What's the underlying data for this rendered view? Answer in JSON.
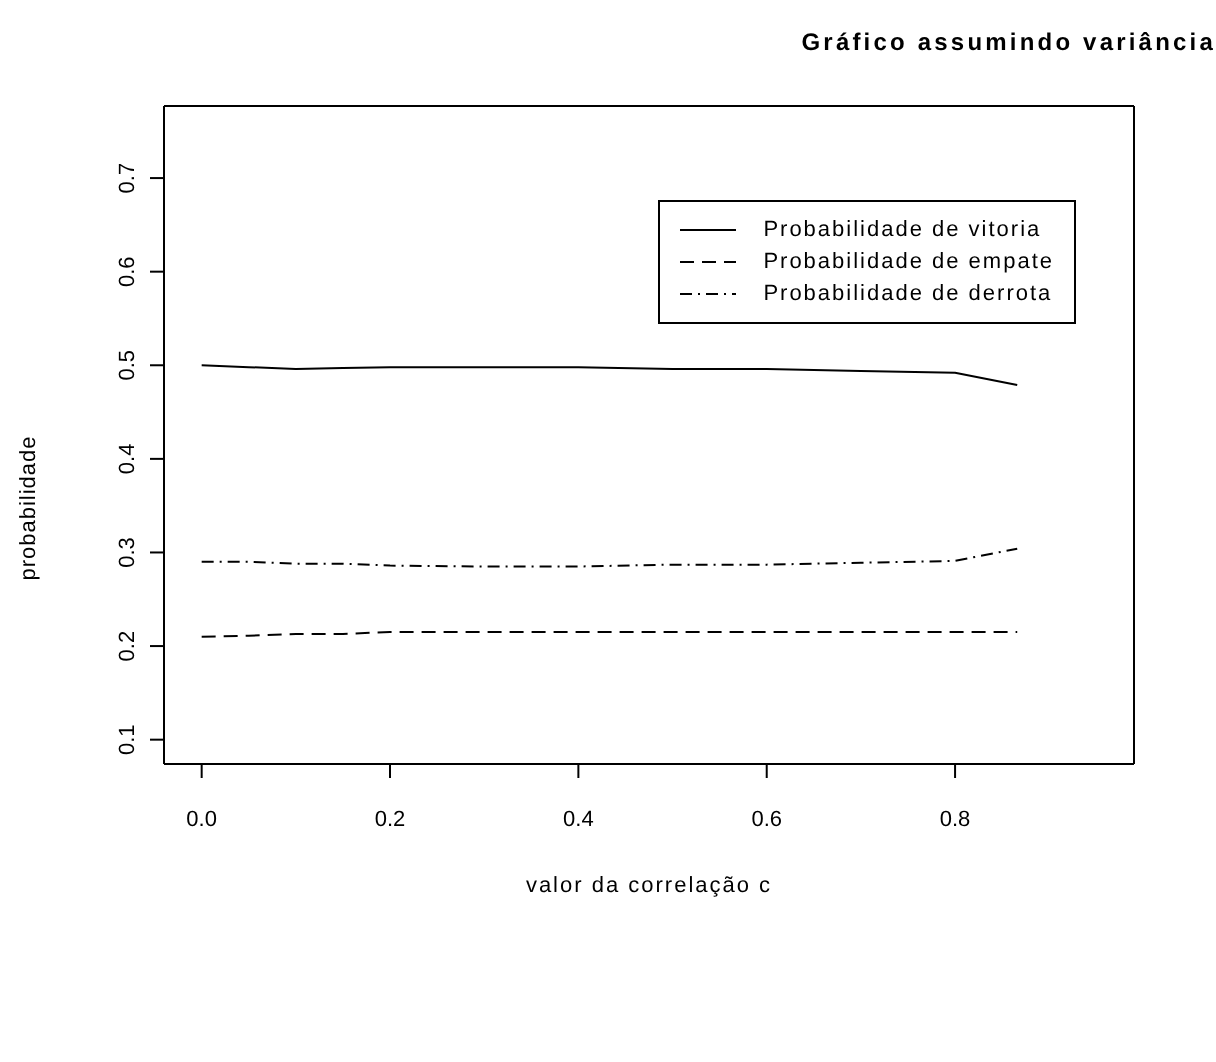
{
  "chart_data": {
    "type": "line",
    "title": "Gráfico assumindo variância",
    "xlabel": "valor da correlação c",
    "ylabel": "probabilidade",
    "x": [
      0,
      0.05,
      0.1,
      0.15,
      0.2,
      0.3,
      0.4,
      0.5,
      0.6,
      0.7,
      0.8,
      0.866
    ],
    "series": [
      {
        "name": "Probabilidade de vitoria",
        "color": "#000000",
        "line_style": "solid",
        "values": [
          0.5,
          0.498,
          0.496,
          0.497,
          0.498,
          0.498,
          0.498,
          0.496,
          0.496,
          0.494,
          0.492,
          0.479
        ]
      },
      {
        "name": "Probabilidade de empate",
        "color": "#000000",
        "line_style": "dashed",
        "values": [
          0.21,
          0.211,
          0.213,
          0.213,
          0.215,
          0.215,
          0.215,
          0.215,
          0.215,
          0.215,
          0.215,
          0.215
        ]
      },
      {
        "name": "Probabilidade de derrota",
        "color": "#000000",
        "line_style": "dashdot",
        "values": [
          0.29,
          0.29,
          0.288,
          0.288,
          0.286,
          0.285,
          0.285,
          0.287,
          0.287,
          0.289,
          0.291,
          0.304
        ]
      }
    ],
    "xlim": [
      -0.04,
      0.99
    ],
    "xticks": [
      {
        "value": 0,
        "label": "0.0"
      },
      0.2,
      0.4,
      0.6,
      0.8
    ],
    "ylim": [
      0.074,
      0.777
    ],
    "yticks": [
      0.1,
      0.2,
      0.3,
      0.4,
      0.5,
      0.6,
      0.7
    ],
    "grid": false,
    "legend": "top right",
    "marker": "none"
  }
}
